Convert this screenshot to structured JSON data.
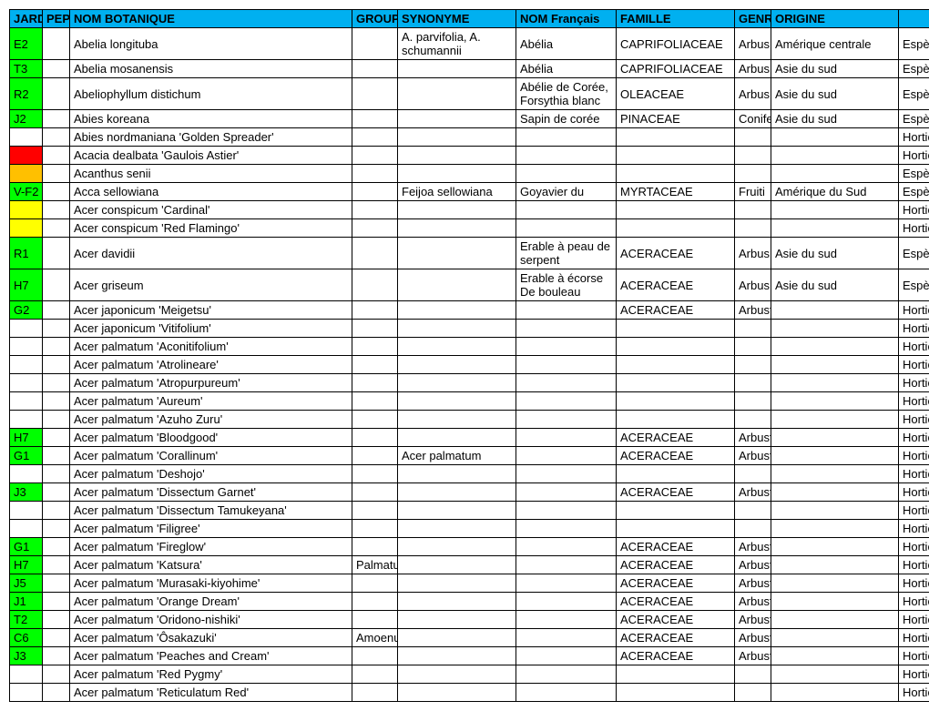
{
  "colors": {
    "header_bg": "#00b0f0",
    "green": "#00ff00",
    "yellow": "#ffff00",
    "red": "#ff0000",
    "orange": "#ffc000"
  },
  "columns": [
    "JARD",
    "PEP",
    "NOM BOTANIQUE",
    "GROUP",
    "SYNONYME",
    "NOM Français",
    "FAMILLE",
    "GENR",
    "ORIGINE",
    ""
  ],
  "rows": [
    {
      "jard": "E2",
      "jard_bg": "green",
      "pep": "",
      "pep_bg": "",
      "nom": "Abelia longituba",
      "grp": "",
      "syn": "A. parvifolia, A. schumannii",
      "fr": "Abélia",
      "fam": "CAPRIFOLIACEAE",
      "genr": "Arbus",
      "orig": "Amérique centrale",
      "type": "Espèce"
    },
    {
      "jard": "T3",
      "jard_bg": "green",
      "pep": "",
      "pep_bg": "",
      "nom": "Abelia mosanensis",
      "grp": "",
      "syn": "",
      "fr": "Abélia",
      "fam": "CAPRIFOLIACEAE",
      "genr": "Arbus",
      "orig": "Asie du sud",
      "type": "Espèce"
    },
    {
      "jard": "R2",
      "jard_bg": "green",
      "pep": "",
      "pep_bg": "",
      "nom": "Abeliophyllum distichum",
      "grp": "",
      "syn": "",
      "fr": "Abélie de Corée, Forsythia blanc",
      "fam": "OLEACEAE",
      "genr": "Arbus",
      "orig": "Asie du sud",
      "type": "Espèce"
    },
    {
      "jard": "J2",
      "jard_bg": "green",
      "pep": "",
      "pep_bg": "",
      "nom": "Abies koreana",
      "grp": "",
      "syn": "",
      "fr": "Sapin de corée",
      "fam": "PINACEAE",
      "genr": "Conife",
      "orig": "Asie du sud",
      "type": "Espèce"
    },
    {
      "jard": "",
      "jard_bg": "",
      "pep": "",
      "pep_bg": "",
      "nom": "Abies nordmaniana 'Golden Spreader'",
      "grp": "",
      "syn": "",
      "fr": "",
      "fam": "",
      "genr": "",
      "orig": "",
      "type": "Horticole"
    },
    {
      "jard": "",
      "jard_bg": "red",
      "pep": "",
      "pep_bg": "",
      "nom": "Acacia dealbata 'Gaulois Astier'",
      "grp": "",
      "syn": "",
      "fr": "",
      "fam": "",
      "genr": "",
      "orig": "",
      "type": "Horticole"
    },
    {
      "jard": "",
      "jard_bg": "orange",
      "pep": "",
      "pep_bg": "",
      "nom": "Acanthus senii",
      "grp": "",
      "syn": "",
      "fr": "",
      "fam": "",
      "genr": "",
      "orig": "",
      "type": "Espèce"
    },
    {
      "jard": "V-F2",
      "jard_bg": "green",
      "pep": "",
      "pep_bg": "",
      "nom": "Acca sellowiana",
      "grp": "",
      "syn": "Feijoa sellowiana",
      "fr": "Goyavier du",
      "fam": "MYRTACEAE",
      "genr": "Fruiti",
      "orig": "Amérique du Sud",
      "type": "Espèce"
    },
    {
      "jard": "",
      "jard_bg": "yellow",
      "pep": "",
      "pep_bg": "",
      "nom": "Acer conspicum 'Cardinal'",
      "grp": "",
      "syn": "",
      "fr": "",
      "fam": "",
      "genr": "",
      "orig": "",
      "type": "Horticole"
    },
    {
      "jard": "",
      "jard_bg": "yellow",
      "pep": "",
      "pep_bg": "",
      "nom": "Acer conspicum 'Red Flamingo'",
      "grp": "",
      "syn": "",
      "fr": "",
      "fam": "",
      "genr": "",
      "orig": "",
      "type": "Horticole"
    },
    {
      "jard": "R1",
      "jard_bg": "green",
      "pep": "",
      "pep_bg": "",
      "nom": "Acer davidii",
      "grp": "",
      "syn": "",
      "fr": "Erable à peau de serpent",
      "fam": "ACERACEAE",
      "genr": "Arbus",
      "orig": "Asie du sud",
      "type": "Espèce"
    },
    {
      "jard": "H7",
      "jard_bg": "green",
      "pep": "",
      "pep_bg": "",
      "nom": "Acer griseum",
      "grp": "",
      "syn": "",
      "fr": "Erable à écorse De bouleau",
      "fam": "ACERACEAE",
      "genr": "Arbus",
      "orig": "Asie du sud",
      "type": "Espèce"
    },
    {
      "jard": "G2",
      "jard_bg": "green",
      "pep": "",
      "pep_bg": "",
      "nom": "Acer japonicum 'Meigetsu'",
      "grp": "",
      "syn": "",
      "fr": "",
      "fam": "ACERACEAE",
      "genr": "Arbuste",
      "orig": "",
      "type": "Horticole"
    },
    {
      "jard": "",
      "jard_bg": "",
      "pep": "",
      "pep_bg": "",
      "nom": "Acer japonicum 'Vitifolium'",
      "grp": "",
      "syn": "",
      "fr": "",
      "fam": "",
      "genr": "",
      "orig": "",
      "type": "Horticole"
    },
    {
      "jard": "",
      "jard_bg": "",
      "pep": "",
      "pep_bg": "",
      "nom": "Acer palmatum 'Aconitifolium'",
      "grp": "",
      "syn": "",
      "fr": "",
      "fam": "",
      "genr": "",
      "orig": "",
      "type": "Horticole"
    },
    {
      "jard": "",
      "jard_bg": "",
      "pep": "",
      "pep_bg": "",
      "nom": "Acer palmatum 'Atrolineare'",
      "grp": "",
      "syn": "",
      "fr": "",
      "fam": "",
      "genr": "",
      "orig": "",
      "type": "Horticole"
    },
    {
      "jard": "",
      "jard_bg": "",
      "pep": "",
      "pep_bg": "",
      "nom": "Acer palmatum 'Atropurpureum'",
      "grp": "",
      "syn": "",
      "fr": "",
      "fam": "",
      "genr": "",
      "orig": "",
      "type": "Horticole"
    },
    {
      "jard": "",
      "jard_bg": "",
      "pep": "",
      "pep_bg": "",
      "nom": "Acer palmatum 'Aureum'",
      "grp": "",
      "syn": "",
      "fr": "",
      "fam": "",
      "genr": "",
      "orig": "",
      "type": "Horticole"
    },
    {
      "jard": "",
      "jard_bg": "",
      "pep": "",
      "pep_bg": "",
      "nom": "Acer palmatum 'Azuho Zuru'",
      "grp": "",
      "syn": "",
      "fr": "",
      "fam": "",
      "genr": "",
      "orig": "",
      "type": "Horticole"
    },
    {
      "jard": "H7",
      "jard_bg": "green",
      "pep": "",
      "pep_bg": "",
      "nom": "Acer palmatum 'Bloodgood'",
      "grp": "",
      "syn": "",
      "fr": "",
      "fam": "ACERACEAE",
      "genr": "Arbuste",
      "orig": "",
      "type": "Horticole"
    },
    {
      "jard": "G1",
      "jard_bg": "green",
      "pep": "",
      "pep_bg": "",
      "nom": "Acer palmatum 'Corallinum'",
      "grp": "",
      "syn": "Acer palmatum",
      "fr": "",
      "fam": "ACERACEAE",
      "genr": "Arbuste",
      "orig": "",
      "type": "Horticole"
    },
    {
      "jard": "",
      "jard_bg": "",
      "pep": "",
      "pep_bg": "",
      "nom": "Acer palmatum 'Deshojo'",
      "grp": "",
      "syn": "",
      "fr": "",
      "fam": "",
      "genr": "",
      "orig": "",
      "type": "Horticole"
    },
    {
      "jard": "J3",
      "jard_bg": "green",
      "pep": "",
      "pep_bg": "",
      "nom": "Acer palmatum 'Dissectum Garnet'",
      "grp": "",
      "syn": "",
      "fr": "",
      "fam": "ACERACEAE",
      "genr": "Arbuste",
      "orig": "",
      "type": "Horticole"
    },
    {
      "jard": "",
      "jard_bg": "",
      "pep": "",
      "pep_bg": "",
      "nom": "Acer palmatum 'Dissectum Tamukeyana'",
      "grp": "",
      "syn": "",
      "fr": "",
      "fam": "",
      "genr": "",
      "orig": "",
      "type": "Horticole"
    },
    {
      "jard": "",
      "jard_bg": "",
      "pep": "",
      "pep_bg": "",
      "nom": "Acer palmatum 'Filigree'",
      "grp": "",
      "syn": "",
      "fr": "",
      "fam": "",
      "genr": "",
      "orig": "",
      "type": "Horticole"
    },
    {
      "jard": "G1",
      "jard_bg": "green",
      "pep": "",
      "pep_bg": "",
      "nom": "Acer palmatum 'Fireglow'",
      "grp": "",
      "syn": "",
      "fr": "",
      "fam": "ACERACEAE",
      "genr": "Arbuste",
      "orig": "",
      "type": "Horticole"
    },
    {
      "jard": "H7",
      "jard_bg": "green",
      "pep": "",
      "pep_bg": "",
      "nom": "Acer palmatum 'Katsura'",
      "grp": "Palmatum Group",
      "syn": "",
      "fr": "",
      "fam": "ACERACEAE",
      "genr": "Arbuste",
      "orig": "",
      "type": "Horticole"
    },
    {
      "jard": "J5",
      "jard_bg": "green",
      "pep": "",
      "pep_bg": "",
      "nom": "Acer palmatum 'Murasaki-kiyohime'",
      "grp": "",
      "syn": "",
      "fr": "",
      "fam": "ACERACEAE",
      "genr": "Arbuste",
      "orig": "",
      "type": "Horticole"
    },
    {
      "jard": "J1",
      "jard_bg": "green",
      "pep": "",
      "pep_bg": "",
      "nom": "Acer palmatum 'Orange Dream'",
      "grp": "",
      "syn": "",
      "fr": "",
      "fam": "ACERACEAE",
      "genr": "Arbuste",
      "orig": "",
      "type": "Horticole"
    },
    {
      "jard": "T2",
      "jard_bg": "green",
      "pep": "",
      "pep_bg": "",
      "nom": "Acer palmatum 'Oridono-nishiki'",
      "grp": "",
      "syn": "",
      "fr": "",
      "fam": "ACERACEAE",
      "genr": "Arbuste",
      "orig": "",
      "type": "Horticole"
    },
    {
      "jard": "C6",
      "jard_bg": "green",
      "pep": "",
      "pep_bg": "",
      "nom": "Acer palmatum 'Ôsakazuki'",
      "grp": "Amoenum Group",
      "syn": "",
      "fr": "",
      "fam": "ACERACEAE",
      "genr": "Arbuste",
      "orig": "",
      "type": "Horticole"
    },
    {
      "jard": "J3",
      "jard_bg": "green",
      "pep": "",
      "pep_bg": "",
      "nom": "Acer palmatum 'Peaches and Cream'",
      "grp": "",
      "syn": "",
      "fr": "",
      "fam": "ACERACEAE",
      "genr": "Arbuste",
      "orig": "",
      "type": "Horticole"
    },
    {
      "jard": "",
      "jard_bg": "",
      "pep": "",
      "pep_bg": "",
      "nom": "Acer palmatum 'Red Pygmy'",
      "grp": "",
      "syn": "",
      "fr": "",
      "fam": "",
      "genr": "",
      "orig": "",
      "type": "Horticole"
    },
    {
      "jard": "",
      "jard_bg": "",
      "pep": "",
      "pep_bg": "",
      "nom": "Acer palmatum 'Reticulatum Red'",
      "grp": "",
      "syn": "",
      "fr": "",
      "fam": "",
      "genr": "",
      "orig": "",
      "type": "Horticole"
    }
  ]
}
